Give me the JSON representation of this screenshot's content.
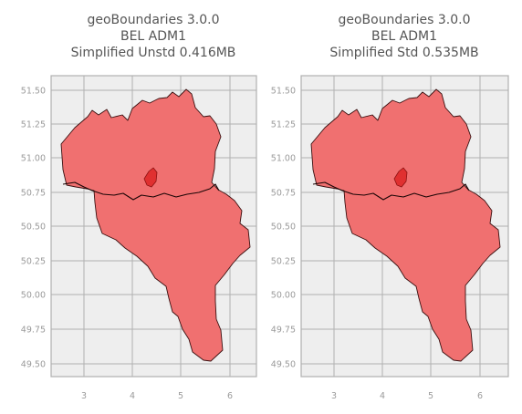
{
  "panels": [
    {
      "title_lines": [
        "geoBoundaries 3.0.0",
        "BEL ADM1",
        "Simplified Unstd 0.416MB"
      ],
      "x_ticks": [
        "3",
        "4",
        "5",
        "6"
      ],
      "y_ticks": [
        "51.50",
        "51.25",
        "51.00",
        "50.75",
        "50.50",
        "50.25",
        "50.00",
        "49.75",
        "49.50"
      ]
    },
    {
      "title_lines": [
        "geoBoundaries 3.0.0",
        "BEL ADM1",
        "Simplified Std 0.535MB"
      ],
      "x_ticks": [
        "3",
        "4",
        "5",
        "6"
      ],
      "y_ticks": [
        "51.50",
        "51.25",
        "51.00",
        "50.75",
        "50.50",
        "50.25",
        "50.00",
        "49.75",
        "49.50"
      ]
    }
  ],
  "colors": {
    "axes_bg": "#eeeeee",
    "grid": "#b0b0b0",
    "region_fill": "#f07070",
    "region_edge": "#3a1010",
    "capital_fill": "#e03030"
  }
}
